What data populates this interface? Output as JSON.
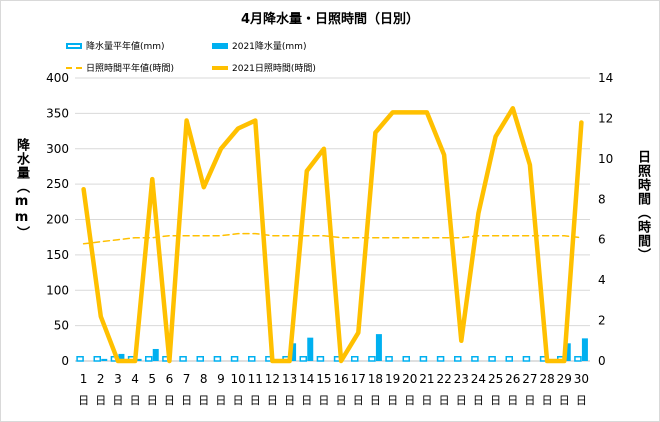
{
  "chart_data": {
    "type": "bar+line",
    "title": "4月降水量・日照時間（日別）",
    "categories": [
      "1",
      "2",
      "3",
      "4",
      "5",
      "6",
      "7",
      "8",
      "9",
      "10",
      "11",
      "12",
      "13",
      "14",
      "15",
      "16",
      "17",
      "18",
      "19",
      "20",
      "21",
      "22",
      "23",
      "24",
      "25",
      "26",
      "27",
      "28",
      "29",
      "30"
    ],
    "day_suffix": "日",
    "y_left": {
      "label": "降水量（mm）",
      "ylim": [
        0,
        400
      ],
      "ticks": [
        0,
        50,
        100,
        150,
        200,
        250,
        300,
        350,
        400
      ]
    },
    "y_right": {
      "label": "日照時間（時間）",
      "ylim": [
        0,
        14
      ],
      "ticks": [
        0,
        2,
        4,
        6,
        8,
        10,
        12,
        14
      ]
    },
    "series": [
      {
        "name": "降水量平年値(mm)",
        "kind": "bar-outline",
        "axis": "left",
        "color": "#00b0f0",
        "values": [
          6,
          6,
          6,
          6,
          6,
          6,
          6,
          6,
          6,
          6,
          6,
          6,
          6,
          6,
          6,
          6,
          6,
          6,
          6,
          6,
          6,
          6,
          6,
          6,
          6,
          6,
          6,
          6,
          6,
          6
        ]
      },
      {
        "name": "2021降水量(mm)",
        "kind": "bar",
        "axis": "left",
        "color": "#00b0f0",
        "values": [
          0,
          3,
          10,
          3,
          17,
          0,
          0,
          0,
          0,
          0,
          0,
          0,
          25,
          33,
          0,
          0,
          0,
          38,
          0,
          0,
          0,
          0,
          0,
          0,
          0,
          0,
          0,
          0,
          25,
          32
        ]
      },
      {
        "name": "日照時間平年値(時間)",
        "kind": "line-dashed",
        "axis": "right",
        "color": "#ffc000",
        "values": [
          5.8,
          5.9,
          6.0,
          6.1,
          6.1,
          6.2,
          6.2,
          6.2,
          6.2,
          6.3,
          6.3,
          6.2,
          6.2,
          6.2,
          6.2,
          6.1,
          6.1,
          6.1,
          6.1,
          6.1,
          6.1,
          6.1,
          6.1,
          6.2,
          6.2,
          6.2,
          6.2,
          6.2,
          6.2,
          6.1
        ]
      },
      {
        "name": "2021日照時間(時間)",
        "kind": "line",
        "axis": "right",
        "color": "#ffc000",
        "values": [
          8.5,
          2.2,
          0,
          0,
          9.0,
          0,
          11.9,
          8.6,
          10.5,
          11.5,
          11.9,
          0,
          0,
          9.4,
          10.5,
          0,
          1.4,
          11.3,
          12.3,
          12.3,
          12.3,
          10.2,
          1.0,
          7.3,
          11.1,
          12.5,
          9.7,
          0,
          0,
          11.8
        ]
      }
    ]
  }
}
